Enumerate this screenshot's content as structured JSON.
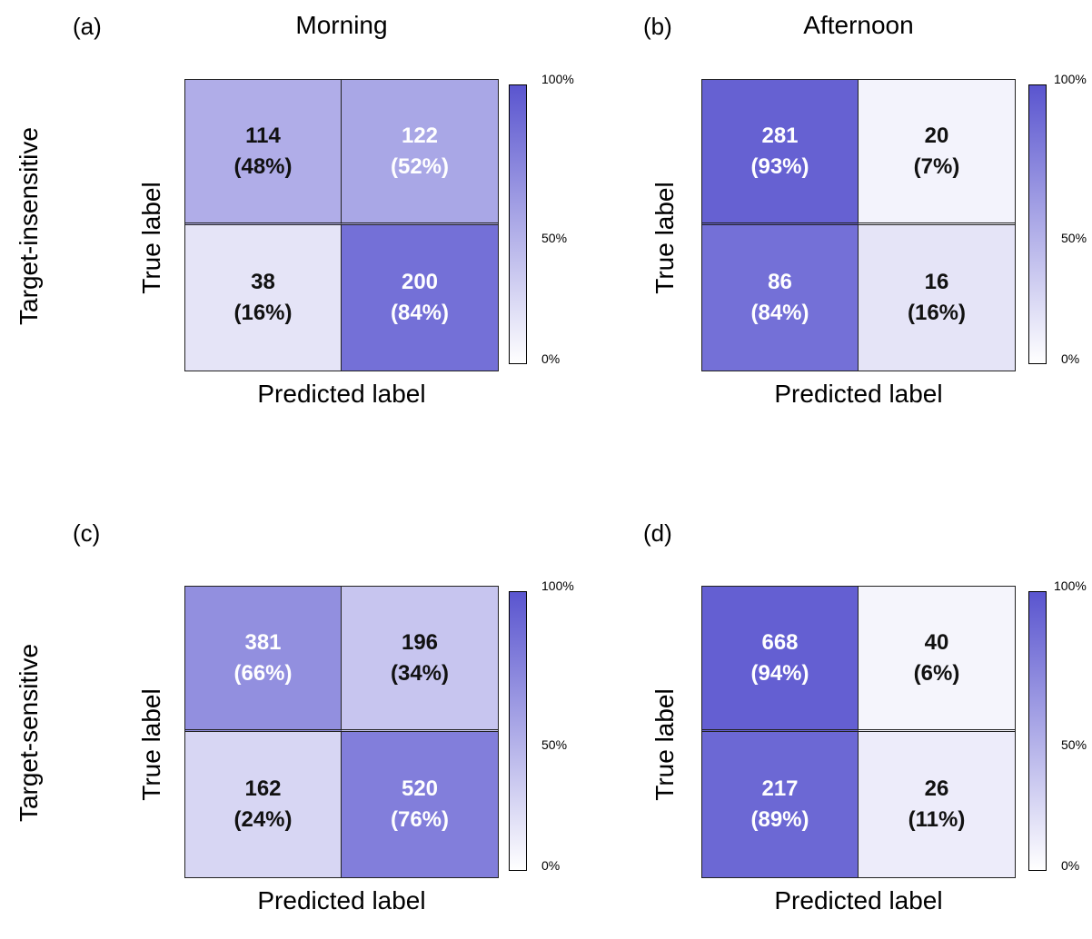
{
  "col_titles": [
    "Morning",
    "Afternoon"
  ],
  "row_labels": [
    "Target-insensitive",
    "Target-sensitive"
  ],
  "panel_letters": [
    "(a)",
    "(b)",
    "(c)",
    "(d)"
  ],
  "colorbar": {
    "low_color": "#ffffff",
    "high_color": "#5a55cf",
    "ticks": [
      "100%",
      "50%",
      "0%"
    ]
  },
  "chart_data": [
    {
      "type": "heatmap",
      "panel": "(a)",
      "title": "Morning",
      "ylabel": "True label",
      "xlabel": "Predicted label",
      "counts": [
        [
          114,
          122
        ],
        [
          38,
          200
        ]
      ],
      "percent_text": [
        [
          "(48%)",
          "(52%)"
        ],
        [
          "(16%)",
          "(84%)"
        ]
      ],
      "fraction": [
        [
          0.48,
          0.52
        ],
        [
          0.16,
          0.84
        ]
      ],
      "colorbar_range": [
        0,
        100
      ]
    },
    {
      "type": "heatmap",
      "panel": "(b)",
      "title": "Afternoon",
      "ylabel": "True label",
      "xlabel": "Predicted label",
      "counts": [
        [
          281,
          20
        ],
        [
          86,
          16
        ]
      ],
      "percent_text": [
        [
          "(93%)",
          "(7%)"
        ],
        [
          "(84%)",
          "(16%)"
        ]
      ],
      "fraction": [
        [
          0.93,
          0.07
        ],
        [
          0.84,
          0.16
        ]
      ],
      "colorbar_range": [
        0,
        100
      ]
    },
    {
      "type": "heatmap",
      "panel": "(c)",
      "title": "",
      "ylabel": "True label",
      "xlabel": "Predicted label",
      "counts": [
        [
          381,
          196
        ],
        [
          162,
          520
        ]
      ],
      "percent_text": [
        [
          "(66%)",
          "(34%)"
        ],
        [
          "(24%)",
          "(76%)"
        ]
      ],
      "fraction": [
        [
          0.66,
          0.34
        ],
        [
          0.24,
          0.76
        ]
      ],
      "colorbar_range": [
        0,
        100
      ]
    },
    {
      "type": "heatmap",
      "panel": "(d)",
      "title": "",
      "ylabel": "True label",
      "xlabel": "Predicted label",
      "counts": [
        [
          668,
          40
        ],
        [
          217,
          26
        ]
      ],
      "percent_text": [
        [
          "(94%)",
          "(6%)"
        ],
        [
          "(89%)",
          "(11%)"
        ]
      ],
      "fraction": [
        [
          0.94,
          0.06
        ],
        [
          0.89,
          0.11
        ]
      ],
      "colorbar_range": [
        0,
        100
      ]
    }
  ]
}
